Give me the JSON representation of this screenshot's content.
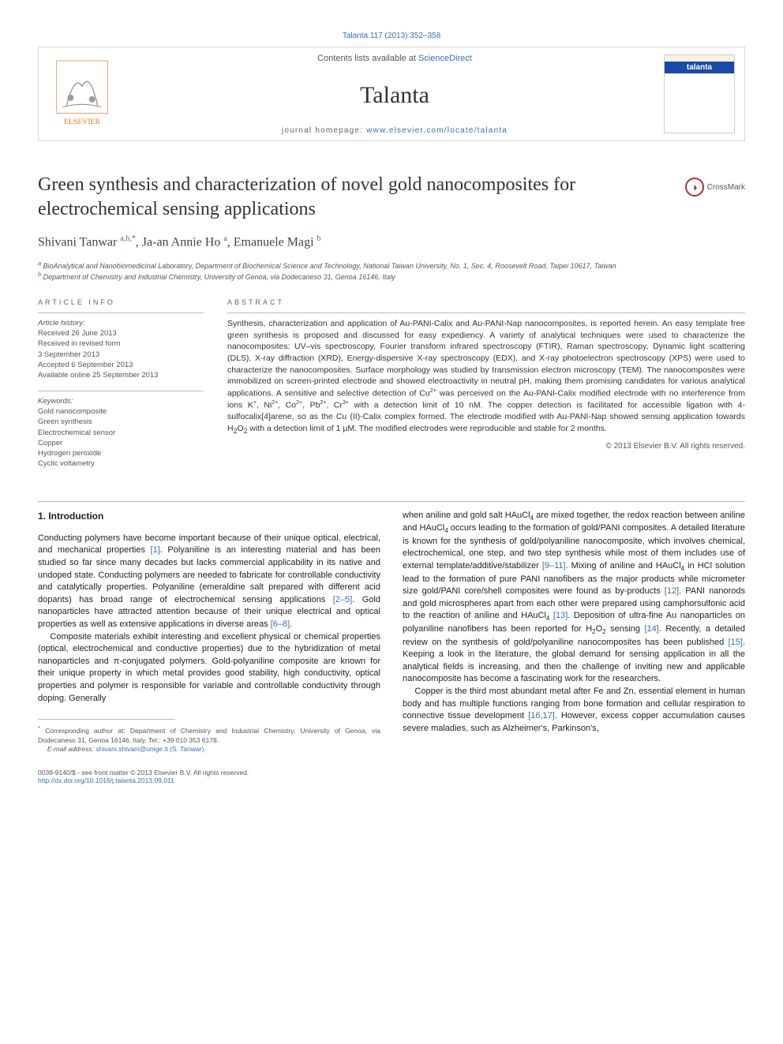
{
  "journal_ref": "Talanta 117 (2013) 352–358",
  "header": {
    "contents_prefix": "Contents lists available at ",
    "contents_link": "ScienceDirect",
    "journal_name": "Talanta",
    "homepage_prefix": "journal homepage: ",
    "homepage_link": "www.elsevier.com/locate/talanta",
    "cover_label": "talanta",
    "publisher_name": "ELSEVIER"
  },
  "title": "Green synthesis and characterization of novel gold nanocomposites for electrochemical sensing applications",
  "crossmark_label": "CrossMark",
  "authors_html": "Shivani Tanwar <sup>a,b,*</sup>, Ja-an Annie Ho <sup>a</sup>, Emanuele Magi <sup>b</sup>",
  "affiliations": [
    {
      "sup": "a",
      "text": " BioAnalytical and Nanobiomedicinal Laboratory, Department of Biochemical Science and Technology, National Taiwan University, No. 1, Sec. 4, Roosevelt Road, Taipei 10617, Taiwan"
    },
    {
      "sup": "b",
      "text": " Department of Chemistry and Industrial Chemistry, University of Genoa, via Dodecaneso 31, Genoa 16146, Italy"
    }
  ],
  "info": {
    "title": "ARTICLE INFO",
    "history_label": "Article history:",
    "history": [
      "Received 26 June 2013",
      "Received in revised form",
      "3 September 2013",
      "Accepted 6 September 2013",
      "Available online 25 September 2013"
    ],
    "keywords_label": "Keywords:",
    "keywords": [
      "Gold nanocomposite",
      "Green synthesis",
      "Electrochemical sensor",
      "Copper",
      "Hydrogen peroxide",
      "Cyclic voltametry"
    ]
  },
  "abstract": {
    "title": "ABSTRACT",
    "text_html": "Synthesis, characterization and application of Au-PANI-Calix and Au-PANI-Nap nanocomposites, is reported herein. An easy template free green synthesis is proposed and discussed for easy expediency. A variety of analytical techniques were used to characterize the nanocomposites: UV–vis spectroscopy, Fourier transform infrared spectroscopy (FTIR), Raman spectroscopy, Dynamic light scattering (DLS), X-ray diffraction (XRD), Energy-dispersive X-ray spectroscopy (EDX), and X-ray photoelectron spectroscopy (XPS) were used to characterize the nanocomposites. Surface morphology was studied by transmission electron microscopy (TEM). The nanocomposites were immobilized on screen-printed electrode and showed electroactivity in neutral pH, making them promising candidates for various analytical applications. A sensitive and selective detection of Cu<sup>2+</sup> was perceived on the Au-PANI-Calix modified electrode with no interference from ions K<sup>+</sup>, Ni<sup>2+</sup>, Co<sup>2+</sup>, Pb<sup>2+</sup>, Cr<sup>3+</sup> with a detection limit of 10 nM. The copper detection is facilitated for accessible ligation with 4-sulfocalix[4]arene, so as the Cu (II)-Calix complex formed. The electrode modified with Au-PANI-Nap showed sensing application towards H<sub>2</sub>O<sub>2</sub> with a detection limit of 1 µM. The modified electrodes were reproducible and stable for 2 months.",
    "copyright": "© 2013 Elsevier B.V. All rights reserved."
  },
  "body": {
    "section_heading": "1.  Introduction",
    "left_paras": [
      "Conducting polymers have become important because of their unique optical, electrical, and mechanical properties <a>[1]</a>. Polyaniline is an interesting material and has been studied so far since many decades but lacks commercial applicability in its native and undoped state. Conducting polymers are needed to fabricate for controllable conductivity and catalytically properties. Polyaniline (emeraldine salt prepared with different acid dopants) has broad range of electrochemical sensing applications <a>[2–5]</a>. Gold nanoparticles have attracted attention because of their unique electrical and optical properties as well as extensive applications in diverse areas <a>[6–8]</a>.",
      "Composite materials exhibit interesting and excellent physical or chemical properties (optical, electrochemical and conductive properties) due to the hybridization of metal nanoparticles and π-conjugated polymers. Gold-polyaniline composite are known for their unique property in which metal provides good stability, high conductivity, optical properties and polymer is responsible for variable and controllable conductivity through doping. Generally"
    ],
    "right_paras": [
      "when aniline and gold salt HAuCl<sub>4</sub> are mixed together, the redox reaction between aniline and HAuCl<sub>4</sub> occurs leading to the formation of gold/PANI composites. A detailed literature is known for the synthesis of gold/polyaniline nanocomposite, which involves chemical, electrochemical, one step, and two step synthesis while most of them includes use of external template/additive/stabilizer <a>[9–11]</a>. Mixing of aniline and HAuCl<sub>4</sub> in HCl solution lead to the formation of pure PANI nanofibers as the major products while micrometer size gold/PANI core/shell composites were found as by-products <a>[12]</a>. PANI nanorods and gold microspheres apart from each other were prepared using camphorsulfonic acid to the reaction of aniline and HAuCl<sub>4</sub> <a>[13]</a>. Deposition of ultra-fine Au nanoparticles on polyaniline nanofibers has been reported for H<sub>2</sub>O<sub>2</sub> sensing <a>[14]</a>. Recently, a detailed review on the synthesis of gold/polyaniline nanocomposites has been published <a>[15]</a>. Keeping a look in the literature, the global demand for sensing application in all the analytical fields is increasing, and then the challenge of inviting new and applicable nanocomposite has become a fascinating work for the researchers.",
      "Copper is the third most abundant metal after Fe and Zn, essential element in human body and has multiple functions ranging from bone formation and cellular respiration to connective tissue development <a>[16,17]</a>. However, excess copper accumulation causes severe maladies, such as Alzheimer's, Parkinson's,"
    ]
  },
  "footnote": {
    "marker": "*",
    "text": " Corresponding author at: Department of Chemistry and Industrial Chemistry, University of Genoa, via Dodecaneso 31, Genoa 16146, Italy. Tel.: +39 010 353 6178.",
    "email_label": "E-mail address: ",
    "email": "shivani.shivani@unige.it (S. Tanwar)"
  },
  "footer": {
    "left_line1": "0039-9140/$ - see front matter © 2013 Elsevier B.V. All rights reserved.",
    "left_line2": "http://dx.doi.org/10.1016/j.talanta.2013.09.011"
  },
  "colors": {
    "link": "#3b6db4",
    "rule": "#bbbbbb",
    "text": "#222222",
    "muted": "#555555",
    "cover_blue": "#1a4aa8",
    "elsevier_orange": "#e97826"
  }
}
